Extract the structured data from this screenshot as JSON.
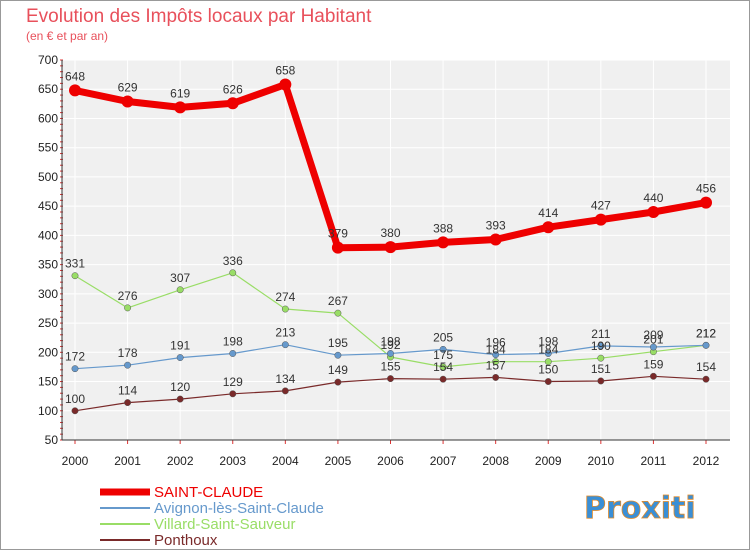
{
  "chart_data": {
    "type": "line",
    "title": "Evolution des Impôts locaux par Habitant",
    "subtitle": "(en € et par an)",
    "x": [
      "2000",
      "2001",
      "2002",
      "2003",
      "2004",
      "2005",
      "2006",
      "2007",
      "2008",
      "2009",
      "2010",
      "2011",
      "2012"
    ],
    "ylim": [
      50,
      700
    ],
    "yticks": [
      50,
      100,
      150,
      200,
      250,
      300,
      350,
      400,
      450,
      500,
      550,
      600,
      650,
      700
    ],
    "grid": true,
    "legend_position": "bottom-left",
    "series": [
      {
        "name": "SAINT-CLAUDE",
        "color": "#ee0000",
        "values": [
          648,
          629,
          619,
          626,
          658,
          379,
          380,
          388,
          393,
          414,
          427,
          440,
          456
        ]
      },
      {
        "name": "Avignon-lès-Saint-Claude",
        "color": "#6699cc",
        "values": [
          172,
          178,
          191,
          198,
          213,
          195,
          198,
          205,
          196,
          198,
          211,
          209,
          212
        ]
      },
      {
        "name": "Villard-Saint-Sauveur",
        "color": "#99dd66",
        "values": [
          331,
          276,
          307,
          336,
          274,
          267,
          192,
          175,
          184,
          184,
          190,
          201,
          212
        ]
      },
      {
        "name": "Ponthoux",
        "color": "#7a2a2a",
        "values": [
          100,
          114,
          120,
          129,
          134,
          149,
          155,
          154,
          157,
          150,
          151,
          159,
          154
        ]
      }
    ]
  },
  "brand": {
    "name": "Proxiti"
  }
}
